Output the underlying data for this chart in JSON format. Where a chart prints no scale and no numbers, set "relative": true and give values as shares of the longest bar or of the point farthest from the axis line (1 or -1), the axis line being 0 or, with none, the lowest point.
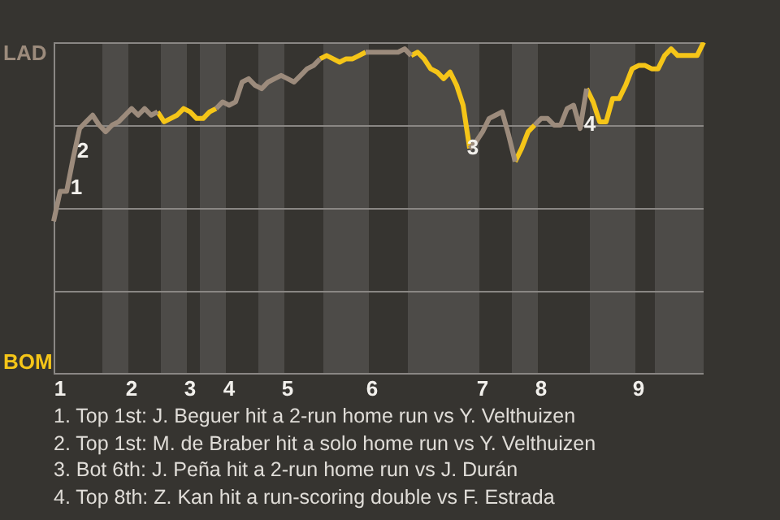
{
  "chart_data": {
    "type": "line",
    "relative": true,
    "categories": [
      null,
      "1",
      null,
      null,
      null,
      null,
      null,
      null,
      null,
      null,
      null,
      null,
      "2",
      null,
      null,
      null,
      null,
      null,
      null,
      null,
      null,
      "3",
      null,
      null,
      null,
      null,
      null,
      "4",
      null,
      null,
      null,
      null,
      null,
      null,
      null,
      null,
      "5",
      null,
      null,
      null,
      null,
      null,
      null,
      null,
      null,
      null,
      null,
      null,
      null,
      "6",
      null,
      null,
      null,
      null,
      null,
      null,
      null,
      null,
      null,
      null,
      null,
      null,
      null,
      null,
      null,
      null,
      "7",
      null,
      null,
      null,
      null,
      null,
      null,
      null,
      null,
      "8",
      null,
      null,
      null,
      null,
      null,
      null,
      null,
      null,
      null,
      null,
      null,
      null,
      null,
      null,
      "9",
      null,
      null,
      null,
      null,
      null,
      null,
      null,
      null,
      null,
      null
    ],
    "series": [
      {
        "color": "#9c8b7c",
        "values": [
          0.46,
          0.55,
          0.55,
          0.65,
          0.74,
          0.76,
          0.78,
          0.75,
          0.73,
          0.75,
          0.76,
          0.78,
          0.8,
          0.78,
          0.8,
          0.78,
          0.79,
          null,
          null,
          null,
          null,
          null,
          null,
          null,
          null,
          0.8,
          0.82,
          0.81,
          0.82,
          0.88,
          0.89,
          0.87,
          0.86,
          0.88,
          0.89,
          0.9,
          0.89,
          0.88,
          0.9,
          0.92,
          0.93,
          0.95,
          null,
          null,
          null,
          null,
          null,
          null,
          0.97,
          0.97,
          0.97,
          0.97,
          0.97,
          0.97,
          0.98,
          0.96,
          null,
          null,
          null,
          null,
          null,
          null,
          null,
          null,
          0.68,
          0.7,
          0.73,
          0.77,
          0.78,
          0.79,
          0.72,
          0.64,
          null,
          null,
          0.75,
          0.77,
          0.77,
          0.75,
          0.75,
          0.8,
          0.81,
          0.74,
          0.86,
          null,
          null,
          null,
          null,
          null,
          null,
          null,
          null,
          null,
          null,
          null,
          null,
          null,
          null,
          null,
          null,
          null,
          null
        ]
      },
      {
        "color": "#f5c518",
        "values": [
          null,
          null,
          null,
          null,
          null,
          null,
          null,
          null,
          null,
          null,
          null,
          null,
          null,
          null,
          null,
          null,
          0.79,
          0.76,
          0.77,
          0.78,
          0.8,
          0.79,
          0.77,
          0.77,
          0.79,
          0.8,
          null,
          null,
          null,
          null,
          null,
          null,
          null,
          null,
          null,
          null,
          null,
          null,
          null,
          null,
          null,
          0.95,
          0.96,
          0.95,
          0.94,
          0.95,
          0.95,
          0.96,
          0.97,
          null,
          null,
          null,
          null,
          null,
          null,
          0.96,
          0.97,
          0.95,
          0.92,
          0.91,
          0.89,
          0.91,
          0.87,
          0.81,
          0.68,
          null,
          null,
          null,
          null,
          null,
          null,
          0.64,
          0.68,
          0.73,
          0.75,
          null,
          null,
          null,
          null,
          null,
          null,
          null,
          0.86,
          0.82,
          0.76,
          0.76,
          0.83,
          0.83,
          0.87,
          0.92,
          0.93,
          0.93,
          0.92,
          0.92,
          0.96,
          0.98,
          0.96,
          0.96,
          0.96,
          0.96,
          1
        ]
      }
    ],
    "ref_lines": [
      {
        "axis": "y",
        "value": 0.25,
        "color": "#8a8784"
      },
      {
        "axis": "y",
        "value": 0.5,
        "color": "#8a8784"
      },
      {
        "axis": "y",
        "value": 0.75,
        "color": "#8a8784"
      },
      {
        "axis": "y",
        "value": 1,
        "color": "#8a8784"
      }
    ],
    "marker": "none",
    "line_style": "solid",
    "legend": false,
    "annotations": [
      "LAD",
      "BOM",
      {
        "text": "1",
        "y": 0.56
      },
      {
        "text": "2",
        "y": 0.67
      },
      {
        "text": "3",
        "y": 0.68
      },
      {
        "text": "4",
        "y": 0.75
      },
      "1. Top 1st: J. Beguer hit a 2-run home run vs Y. Velthuizen",
      "2. Top 1st: M. de Braber hit a solo home run vs Y. Velthuizen",
      "3. Bot 6th: J. Peña hit a 2-run home run vs J. Durán",
      "4. Top 8th: Z. Kan hit a run-scoring double vs F. Estrada"
    ]
  }
}
